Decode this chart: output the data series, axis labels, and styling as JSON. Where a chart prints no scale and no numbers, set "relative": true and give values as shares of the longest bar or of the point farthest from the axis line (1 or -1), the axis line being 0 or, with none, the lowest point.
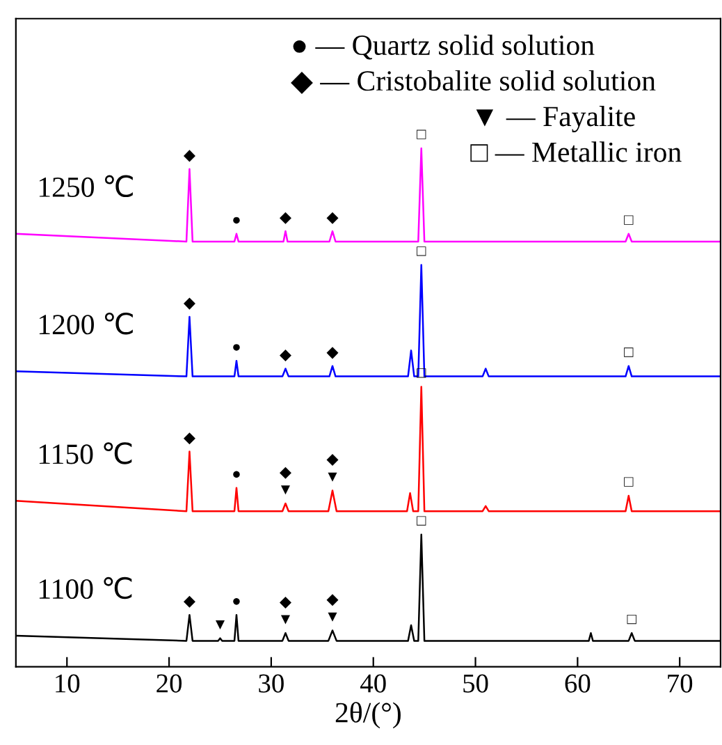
{
  "chart_data": {
    "type": "line",
    "relative": true,
    "xlabel": "2θ/(°)",
    "xlim": [
      5,
      74
    ],
    "xticks": [
      10,
      20,
      30,
      40,
      50,
      60,
      70
    ],
    "grid": false,
    "legend": false,
    "marker": "none",
    "line_style": "solid",
    "series": [
      {
        "name": "1250 ℃",
        "color": "#ff00ff",
        "x": [
          5,
          21.7,
          22,
          22.3,
          26.4,
          26.6,
          26.8,
          31.2,
          31.4,
          31.6,
          35.7,
          36,
          36.3,
          44.4,
          44.7,
          45,
          64.7,
          65,
          65.3,
          74
        ],
        "values": [
          0.835,
          0.82,
          0.96,
          0.82,
          0.82,
          0.835,
          0.82,
          0.82,
          0.84,
          0.82,
          0.82,
          0.84,
          0.82,
          0.82,
          1.0,
          0.82,
          0.82,
          0.835,
          0.82,
          0.82
        ]
      },
      {
        "name": "1200 ℃",
        "color": "#0000ff",
        "x": [
          5,
          21.7,
          22,
          22.3,
          26.4,
          26.6,
          26.8,
          31.1,
          31.4,
          31.7,
          35.7,
          36,
          36.3,
          43.4,
          43.7,
          44.0,
          44.4,
          44.7,
          45,
          50.7,
          51,
          51.3,
          64.7,
          65,
          65.3,
          74
        ],
        "values": [
          0.57,
          0.56,
          0.675,
          0.56,
          0.56,
          0.59,
          0.56,
          0.56,
          0.575,
          0.56,
          0.56,
          0.58,
          0.56,
          0.56,
          0.61,
          0.56,
          0.56,
          0.775,
          0.56,
          0.56,
          0.575,
          0.56,
          0.56,
          0.58,
          0.56,
          0.56
        ]
      },
      {
        "name": "1150 ℃",
        "color": "#ff0000",
        "x": [
          5,
          21.7,
          22,
          22.3,
          26.4,
          26.6,
          26.8,
          31.1,
          31.4,
          31.7,
          35.6,
          36,
          36.4,
          43.3,
          43.6,
          43.9,
          44.4,
          44.7,
          45,
          50.7,
          51,
          51.3,
          64.7,
          65,
          65.3,
          74
        ],
        "values": [
          0.32,
          0.3,
          0.415,
          0.3,
          0.3,
          0.345,
          0.3,
          0.3,
          0.315,
          0.3,
          0.3,
          0.34,
          0.3,
          0.3,
          0.335,
          0.3,
          0.3,
          0.54,
          0.3,
          0.3,
          0.31,
          0.3,
          0.3,
          0.33,
          0.3,
          0.3
        ]
      },
      {
        "name": "1100 ℃",
        "color": "#000000",
        "x": [
          5,
          21.7,
          22,
          22.3,
          24.8,
          25,
          25.2,
          26.4,
          26.6,
          26.8,
          31.1,
          31.4,
          31.7,
          35.6,
          36,
          36.4,
          43.4,
          43.7,
          44.0,
          44.4,
          44.7,
          45,
          61.1,
          61.3,
          61.5,
          65,
          65.3,
          65.6,
          74
        ],
        "values": [
          0.06,
          0.05,
          0.1,
          0.05,
          0.05,
          0.055,
          0.05,
          0.05,
          0.1,
          0.05,
          0.05,
          0.065,
          0.05,
          0.05,
          0.07,
          0.05,
          0.05,
          0.08,
          0.05,
          0.05,
          0.255,
          0.05,
          0.05,
          0.065,
          0.05,
          0.05,
          0.065,
          0.05,
          0.05
        ]
      }
    ],
    "annotations": [
      "● — Quartz solid solution",
      "◆ — Cristobalite solid solution",
      "▼ — Fayalite",
      "□ — Metallic iron",
      {
        "text": "◆",
        "x": 22,
        "y": 0.96
      },
      {
        "text": "●",
        "x": 26.6,
        "y": 0.835
      },
      {
        "text": "◆",
        "x": 31.4,
        "y": 0.84
      },
      {
        "text": "◆",
        "x": 36,
        "y": 0.84
      },
      {
        "text": "□",
        "x": 44.7,
        "y": 1.0
      },
      {
        "text": "□",
        "x": 65,
        "y": 0.835
      },
      {
        "text": "◆",
        "x": 22,
        "y": 0.675
      },
      {
        "text": "●",
        "x": 26.6,
        "y": 0.59
      },
      {
        "text": "◆",
        "x": 31.4,
        "y": 0.575
      },
      {
        "text": "◆",
        "x": 36,
        "y": 0.58
      },
      {
        "text": "□",
        "x": 44.7,
        "y": 0.775
      },
      {
        "text": "□",
        "x": 65,
        "y": 0.58
      },
      {
        "text": "◆",
        "x": 22,
        "y": 0.415
      },
      {
        "text": "●",
        "x": 26.6,
        "y": 0.345
      },
      {
        "text": "▼",
        "x": 31.4,
        "y": 0.315
      },
      {
        "text": "◆",
        "x": 31.4,
        "y": 0.315
      },
      {
        "text": "▼",
        "x": 36,
        "y": 0.34
      },
      {
        "text": "◆",
        "x": 36,
        "y": 0.34
      },
      {
        "text": "□",
        "x": 44.7,
        "y": 0.54
      },
      {
        "text": "□",
        "x": 65,
        "y": 0.33
      },
      {
        "text": "◆",
        "x": 22,
        "y": 0.1
      },
      {
        "text": "▼",
        "x": 25,
        "y": 0.055
      },
      {
        "text": "●",
        "x": 26.6,
        "y": 0.1
      },
      {
        "text": "▼",
        "x": 31.4,
        "y": 0.065
      },
      {
        "text": "◆",
        "x": 31.4,
        "y": 0.065
      },
      {
        "text": "▼",
        "x": 36,
        "y": 0.07
      },
      {
        "text": "◆",
        "x": 36,
        "y": 0.07
      },
      {
        "text": "□",
        "x": 44.7,
        "y": 0.255
      },
      {
        "text": "□",
        "x": 65.3,
        "y": 0.065
      }
    ]
  }
}
